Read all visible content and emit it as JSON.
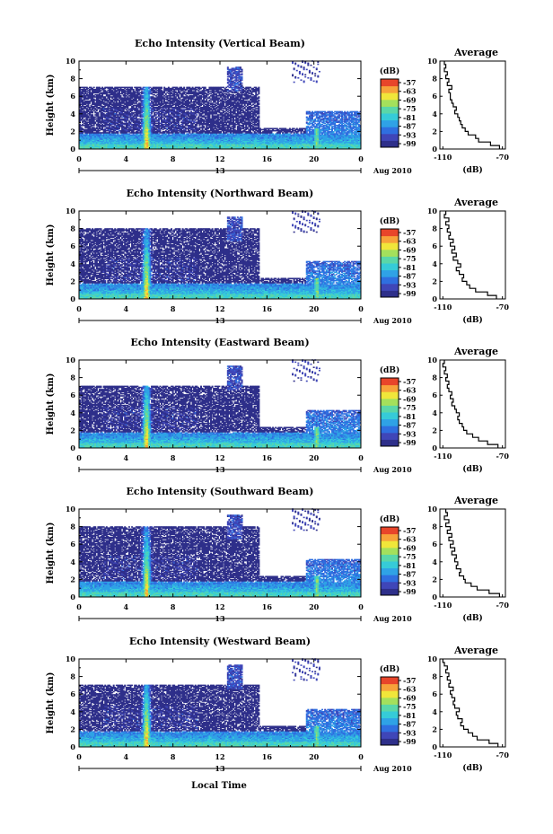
{
  "figure": {
    "date_label": "Aug 2010",
    "xlabel_bottom": "Local Time"
  },
  "colors": {
    "colormap": [
      "#2e2f8a",
      "#3f46b8",
      "#2f6fe0",
      "#2fa2e6",
      "#36cbd8",
      "#5ad7a8",
      "#a4e05c",
      "#f0e63a",
      "#f7a23a",
      "#e8452a"
    ]
  },
  "chart_data": [
    {
      "type": "heatmap",
      "title": "Echo Intensity (Vertical Beam)",
      "ylabel": "Height (km)",
      "xlim": [
        0,
        24
      ],
      "ylim": [
        0,
        10
      ],
      "xticks": [
        "0",
        "4",
        "8",
        "12",
        "16",
        "20",
        "0"
      ],
      "yticks": [
        "0",
        "2",
        "4",
        "6",
        "8",
        "10"
      ],
      "day_marker": "13",
      "colorbar": {
        "label": "(dB)",
        "ticks": [
          "-57",
          "-63",
          "-69",
          "-75",
          "-81",
          "-87",
          "-93",
          "-99"
        ]
      },
      "profile": {
        "title": "Average",
        "xlabel": "(dB)",
        "xticks": [
          "-110",
          "-70"
        ],
        "xlim": [
          -112,
          -68
        ],
        "height": [
          0.2,
          0.6,
          1.0,
          1.4,
          1.8,
          2.2,
          2.6,
          3.0,
          3.4,
          3.8,
          4.2,
          4.6,
          5.0,
          5.4,
          5.8,
          6.2,
          6.6,
          7.0,
          7.4,
          7.8,
          8.2,
          8.6,
          9.0,
          9.4,
          9.8
        ],
        "values": [
          -72,
          -78,
          -86,
          -88,
          -93,
          -95,
          -97,
          -98,
          -99,
          -100,
          -102,
          -101,
          -103,
          -104,
          -105,
          -105,
          -106,
          -104,
          -107,
          -106,
          -108,
          -107,
          -109,
          -108,
          -109
        ]
      }
    },
    {
      "type": "heatmap",
      "title": "Echo Intensity (Northward Beam)",
      "ylabel": "Height (km)",
      "xlim": [
        0,
        24
      ],
      "ylim": [
        0,
        10
      ],
      "xticks": [
        "0",
        "4",
        "8",
        "12",
        "16",
        "20",
        "0"
      ],
      "yticks": [
        "0",
        "2",
        "4",
        "6",
        "8",
        "10"
      ],
      "day_marker": "13",
      "colorbar": {
        "label": "(dB)",
        "ticks": [
          "-57",
          "-63",
          "-69",
          "-75",
          "-81",
          "-87",
          "-93",
          "-99"
        ]
      },
      "profile": {
        "title": "Average",
        "xlabel": "(dB)",
        "xticks": [
          "-110",
          "-70"
        ],
        "xlim": [
          -112,
          -68
        ],
        "height": [
          0.2,
          0.6,
          1.0,
          1.4,
          1.8,
          2.2,
          2.6,
          3.0,
          3.4,
          3.8,
          4.2,
          4.6,
          5.0,
          5.4,
          5.8,
          6.2,
          6.6,
          7.0,
          7.4,
          7.8,
          8.2,
          8.6,
          9.0,
          9.4,
          9.8
        ],
        "values": [
          -74,
          -80,
          -88,
          -92,
          -94,
          -97,
          -96,
          -99,
          -101,
          -98,
          -100,
          -103,
          -101,
          -104,
          -102,
          -105,
          -103,
          -106,
          -105,
          -107,
          -106,
          -108,
          -106,
          -109,
          -108
        ]
      }
    },
    {
      "type": "heatmap",
      "title": "Echo Intensity (Eastward Beam)",
      "ylabel": "Height (km)",
      "xlim": [
        0,
        24
      ],
      "ylim": [
        0,
        10
      ],
      "xticks": [
        "0",
        "4",
        "8",
        "12",
        "16",
        "20",
        "0"
      ],
      "yticks": [
        "0",
        "2",
        "4",
        "6",
        "8",
        "10"
      ],
      "day_marker": "13",
      "colorbar": {
        "label": "(dB)",
        "ticks": [
          "-57",
          "-63",
          "-69",
          "-75",
          "-81",
          "-87",
          "-93",
          "-99"
        ]
      },
      "profile": {
        "title": "Average",
        "xlabel": "(dB)",
        "xticks": [
          "-110",
          "-70"
        ],
        "xlim": [
          -112,
          -68
        ],
        "height": [
          0.2,
          0.6,
          1.0,
          1.4,
          1.8,
          2.2,
          2.6,
          3.0,
          3.4,
          3.8,
          4.2,
          4.6,
          5.0,
          5.4,
          5.8,
          6.2,
          6.6,
          7.0,
          7.4,
          7.8,
          8.2,
          8.6,
          9.0,
          9.4,
          9.8
        ],
        "values": [
          -73,
          -80,
          -86,
          -90,
          -94,
          -96,
          -97,
          -99,
          -100,
          -99,
          -101,
          -102,
          -104,
          -103,
          -105,
          -104,
          -106,
          -107,
          -106,
          -108,
          -107,
          -109,
          -108,
          -110,
          -109
        ]
      }
    },
    {
      "type": "heatmap",
      "title": "Echo Intensity (Southward Beam)",
      "ylabel": "Height (km)",
      "xlim": [
        0,
        24
      ],
      "ylim": [
        0,
        10
      ],
      "xticks": [
        "0",
        "4",
        "8",
        "12",
        "16",
        "20",
        "0"
      ],
      "yticks": [
        "0",
        "2",
        "4",
        "6",
        "8",
        "10"
      ],
      "day_marker": "13",
      "colorbar": {
        "label": "(dB)",
        "ticks": [
          "-57",
          "-63",
          "-69",
          "-75",
          "-81",
          "-87",
          "-93",
          "-99"
        ]
      },
      "profile": {
        "title": "Average",
        "xlabel": "(dB)",
        "xticks": [
          "-110",
          "-70"
        ],
        "xlim": [
          -112,
          -68
        ],
        "height": [
          0.2,
          0.6,
          1.0,
          1.4,
          1.8,
          2.2,
          2.6,
          3.0,
          3.4,
          3.8,
          4.2,
          4.6,
          5.0,
          5.4,
          5.8,
          6.2,
          6.6,
          7.0,
          7.4,
          7.8,
          8.2,
          8.6,
          9.0,
          9.4,
          9.8
        ],
        "values": [
          -72,
          -79,
          -87,
          -91,
          -95,
          -96,
          -99,
          -98,
          -101,
          -100,
          -102,
          -101,
          -104,
          -102,
          -105,
          -103,
          -106,
          -104,
          -107,
          -105,
          -108,
          -106,
          -109,
          -107,
          -108
        ]
      }
    },
    {
      "type": "heatmap",
      "title": "Echo Intensity (Westward Beam)",
      "ylabel": "Height (km)",
      "xlim": [
        0,
        24
      ],
      "ylim": [
        0,
        10
      ],
      "xticks": [
        "0",
        "4",
        "8",
        "12",
        "16",
        "20",
        "0"
      ],
      "yticks": [
        "0",
        "2",
        "4",
        "6",
        "8",
        "10"
      ],
      "day_marker": "13",
      "colorbar": {
        "label": "(dB)",
        "ticks": [
          "-57",
          "-63",
          "-69",
          "-75",
          "-81",
          "-87",
          "-93",
          "-99"
        ]
      },
      "profile": {
        "title": "Average",
        "xlabel": "(dB)",
        "xticks": [
          "-110",
          "-70"
        ],
        "xlim": [
          -112,
          -68
        ],
        "height": [
          0.2,
          0.6,
          1.0,
          1.4,
          1.8,
          2.2,
          2.6,
          3.0,
          3.4,
          3.8,
          4.2,
          4.6,
          5.0,
          5.4,
          5.8,
          6.2,
          6.6,
          7.0,
          7.4,
          7.8,
          8.2,
          8.6,
          9.0,
          9.4,
          9.8
        ],
        "values": [
          -73,
          -79,
          -87,
          -90,
          -93,
          -96,
          -98,
          -97,
          -100,
          -101,
          -99,
          -102,
          -103,
          -102,
          -104,
          -105,
          -103,
          -106,
          -105,
          -107,
          -106,
          -108,
          -107,
          -109,
          -110
        ]
      }
    }
  ]
}
